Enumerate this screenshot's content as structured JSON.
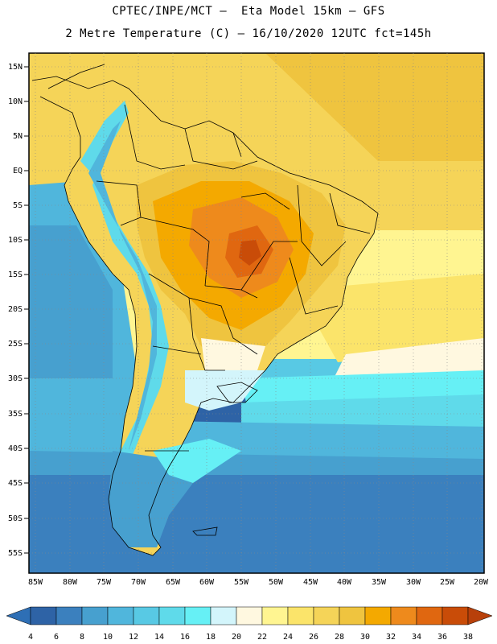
{
  "header": {
    "line1": "CPTEC/INPE/MCT –  Eta Model 15km – GFS",
    "line2": "2 Metre Temperature (C) – 16/10/2020 12UTC fct=145h"
  },
  "axes": {
    "lat_labels": [
      "15N",
      "10N",
      "5N",
      "EQ",
      "5S",
      "10S",
      "15S",
      "20S",
      "25S",
      "30S",
      "35S",
      "40S",
      "45S",
      "50S",
      "55S"
    ],
    "lon_labels": [
      "85W",
      "80W",
      "75W",
      "70W",
      "65W",
      "60W",
      "55W",
      "50W",
      "45W",
      "40W",
      "35W",
      "30W",
      "25W",
      "20W"
    ]
  },
  "colorbar": {
    "labels": [
      "4",
      "6",
      "8",
      "10",
      "12",
      "14",
      "16",
      "18",
      "20",
      "22",
      "24",
      "26",
      "28",
      "30",
      "32",
      "34",
      "36",
      "38"
    ],
    "colors": [
      "#2e63a6",
      "#3b80be",
      "#47a0cf",
      "#50b6dc",
      "#58c9e4",
      "#5fdaea",
      "#66f0f5",
      "#d3f5fb",
      "#fff8e0",
      "#fff591",
      "#fbe46a",
      "#f5d458",
      "#efc43f",
      "#f4a900",
      "#ee8a1c",
      "#e06710",
      "#c94c08"
    ],
    "under_color": "#2e6fb5",
    "over_color": "#b8400a"
  }
}
